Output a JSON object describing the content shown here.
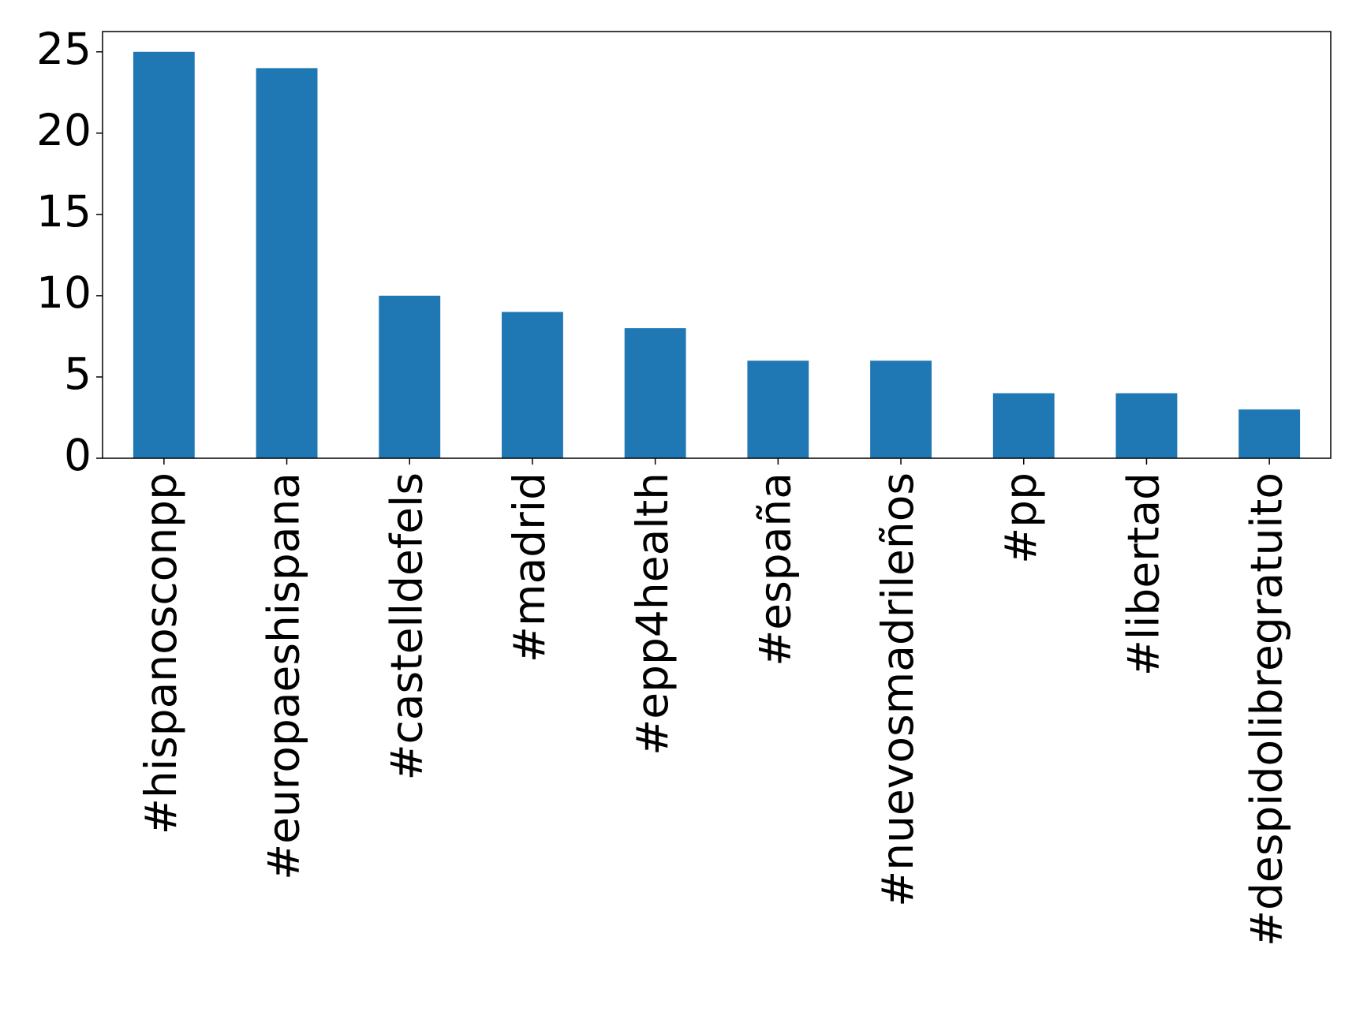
{
  "chart_data": {
    "type": "bar",
    "categories": [
      "#hispanosconpp",
      "#europaeshispana",
      "#castelldefels",
      "#madrid",
      "#epp4health",
      "#españa",
      "#nuevosmadrileños",
      "#pp",
      "#libertad",
      "#despidolibregratuito"
    ],
    "values": [
      25,
      24,
      10,
      9,
      8,
      6,
      6,
      4,
      4,
      3
    ],
    "color": "#1f77b4",
    "ylim": [
      0,
      26.25
    ],
    "yticks": [
      0,
      5,
      10,
      15,
      20,
      25
    ],
    "grid": false
  }
}
